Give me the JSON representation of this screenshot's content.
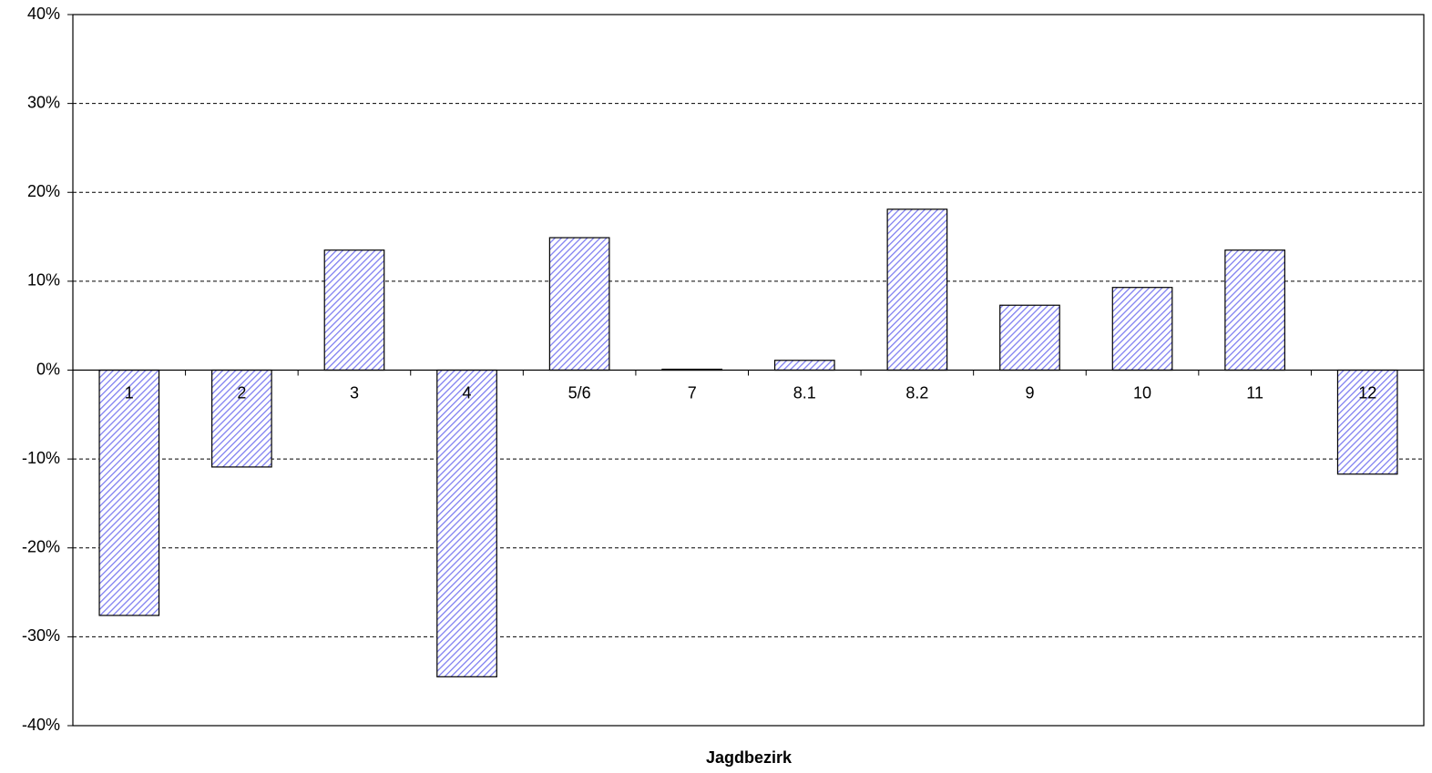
{
  "chart_data": {
    "type": "bar",
    "x_label": "Jagdbezirk",
    "categories": [
      "1",
      "2",
      "3",
      "4",
      "5/6",
      "7",
      "8.1",
      "8.2",
      "9",
      "10",
      "11",
      "12"
    ],
    "values": [
      -27.6,
      -10.9,
      13.5,
      -34.5,
      14.9,
      0.1,
      1.1,
      18.1,
      7.3,
      9.3,
      13.5,
      -11.7
    ],
    "color": "#7b7bf0",
    "ylim": [
      -40,
      40
    ],
    "yticks": [
      {
        "value": -40,
        "label": "-40%"
      },
      {
        "value": -30,
        "label": "-30%"
      },
      {
        "value": -20,
        "label": "-20%"
      },
      {
        "value": -10,
        "label": "-10%"
      },
      {
        "value": 0,
        "label": "0%"
      },
      {
        "value": 10,
        "label": "10%"
      },
      {
        "value": 20,
        "label": "20%"
      },
      {
        "value": 30,
        "label": "30%"
      },
      {
        "value": 40,
        "label": "40%"
      }
    ],
    "grid": true
  }
}
